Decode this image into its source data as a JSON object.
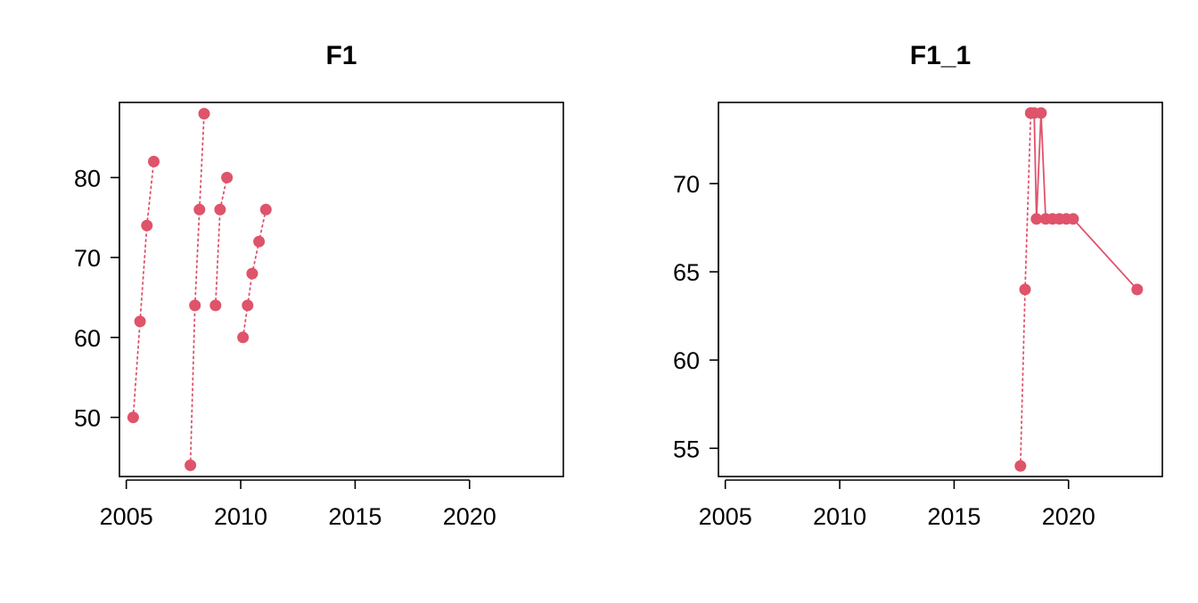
{
  "chart_data": [
    {
      "type": "line",
      "title": "F1",
      "xlabel": "",
      "ylabel": "",
      "xlim": [
        2004.7,
        2024.1
      ],
      "ylim": [
        42.6,
        89.4
      ],
      "x_ticks": [
        2005,
        2010,
        2015,
        2020
      ],
      "y_ticks": [
        50,
        60,
        70,
        80
      ],
      "color": "#DF536B",
      "segments": [
        {
          "style": "dotted",
          "points": [
            [
              2005.3,
              50
            ],
            [
              2005.6,
              62
            ],
            [
              2005.9,
              74
            ],
            [
              2006.2,
              82
            ]
          ]
        },
        {
          "style": "dotted",
          "points": [
            [
              2007.8,
              44
            ],
            [
              2008.0,
              64
            ],
            [
              2008.2,
              76
            ],
            [
              2008.4,
              88
            ]
          ]
        },
        {
          "style": "dotted",
          "points": [
            [
              2008.9,
              64
            ],
            [
              2009.1,
              76
            ],
            [
              2009.4,
              80
            ]
          ]
        },
        {
          "style": "dotted",
          "points": [
            [
              2010.1,
              60
            ],
            [
              2010.3,
              64
            ],
            [
              2010.5,
              68
            ],
            [
              2010.8,
              72
            ],
            [
              2011.1,
              76
            ]
          ]
        }
      ]
    },
    {
      "type": "line",
      "title": "F1_1",
      "xlabel": "",
      "ylabel": "",
      "xlim": [
        2004.7,
        2024.1
      ],
      "ylim": [
        53.4,
        74.6
      ],
      "x_ticks": [
        2005,
        2010,
        2015,
        2020
      ],
      "y_ticks": [
        55,
        60,
        65,
        70
      ],
      "color": "#DF536B",
      "segments": [
        {
          "style": "dotted",
          "points": [
            [
              2017.9,
              54
            ],
            [
              2018.1,
              64
            ],
            [
              2018.35,
              74
            ]
          ]
        },
        {
          "style": "solid",
          "points": [
            [
              2018.35,
              74
            ],
            [
              2018.5,
              74
            ],
            [
              2018.6,
              68
            ],
            [
              2018.8,
              74
            ],
            [
              2019.0,
              68
            ],
            [
              2019.3,
              68
            ],
            [
              2019.6,
              68
            ],
            [
              2019.9,
              68
            ],
            [
              2020.2,
              68
            ],
            [
              2023.0,
              64
            ]
          ]
        }
      ]
    }
  ]
}
